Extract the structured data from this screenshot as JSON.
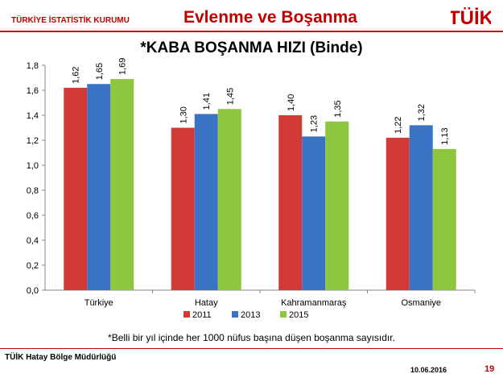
{
  "header": {
    "org_name": "TÜRKİYE İSTATİSTİK KURUMU",
    "title": "Evlenme ve Boşanma",
    "logo_text": "TÜİK"
  },
  "colors": {
    "accent": "#c00000",
    "series_2011": "#d23a36",
    "series_2013": "#3a73c4",
    "series_2015": "#8fc640"
  },
  "chart_data": {
    "type": "bar",
    "title": "*KABA BOŞANMA HIZI (Binde)",
    "categories": [
      "Türkiye",
      "Hatay",
      "Kahramanmaraş",
      "Osmaniye"
    ],
    "series": [
      {
        "name": "2011",
        "values": [
          1.62,
          1.3,
          1.4,
          1.22
        ],
        "labels": [
          "1,62",
          "1,30",
          "1,40",
          "1,22"
        ]
      },
      {
        "name": "2013",
        "values": [
          1.65,
          1.41,
          1.23,
          1.32
        ],
        "labels": [
          "1,65",
          "1,41",
          "1,23",
          "1,32"
        ]
      },
      {
        "name": "2015",
        "values": [
          1.69,
          1.45,
          1.35,
          1.13
        ],
        "labels": [
          "1,69",
          "1,45",
          "1,35",
          "1,13"
        ]
      }
    ],
    "ylim": [
      0,
      1.8
    ],
    "yticks": [
      "0,0",
      "0,2",
      "0,4",
      "0,6",
      "0,8",
      "1,0",
      "1,2",
      "1,4",
      "1,6",
      "1,8"
    ],
    "legend_position": "bottom",
    "grid": false
  },
  "footnote": "*Belli bir yıl içinde her 1000 nüfus başına düşen boşanma sayısıdır.",
  "footer": {
    "org": "TÜİK Hatay Bölge Müdürlüğü",
    "date": "10.06.2016",
    "page": "19"
  }
}
